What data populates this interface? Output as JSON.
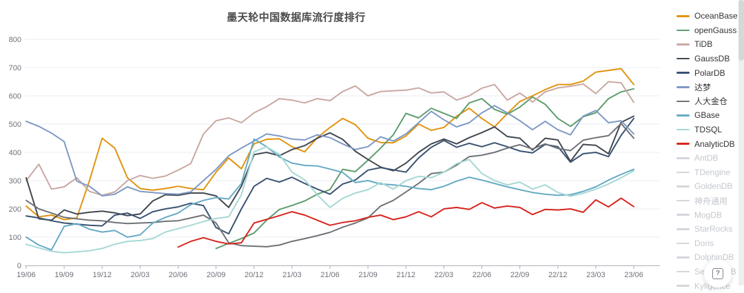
{
  "page": {
    "title": "墨天轮中国数据库流行度排行",
    "help_icon": "?"
  },
  "y_axis": {
    "min": 0,
    "max": 800,
    "interval": 100
  },
  "x_axis": {
    "tick_every": 3
  },
  "chart_data": {
    "type": "line",
    "title": "墨天轮中国数据库流行度排行",
    "xlabel": "",
    "ylabel": "",
    "ylim": [
      0,
      800
    ],
    "grid": true,
    "legend_position": "right",
    "x": [
      "19/06",
      "19/07",
      "19/08",
      "19/09",
      "19/10",
      "19/11",
      "19/12",
      "20/01",
      "20/02",
      "20/03",
      "20/04",
      "20/05",
      "20/06",
      "20/07",
      "20/08",
      "20/09",
      "20/10",
      "20/11",
      "20/12",
      "21/01",
      "21/02",
      "21/03",
      "21/04",
      "21/05",
      "21/06",
      "21/07",
      "21/08",
      "21/09",
      "21/10",
      "21/11",
      "21/12",
      "22/01",
      "22/02",
      "22/03",
      "22/04",
      "22/05",
      "22/06",
      "22/07",
      "22/08",
      "22/09",
      "22/10",
      "22/11",
      "22/12",
      "23/01",
      "23/02",
      "23/03",
      "23/04",
      "23/05",
      "23/06"
    ],
    "series": [
      {
        "name": "OceanBase",
        "color": "#e2930f",
        "active": true,
        "data": [
          210,
          172,
          178,
          162,
          168,
          300,
          450,
          415,
          310,
          272,
          266,
          272,
          280,
          272,
          268,
          330,
          380,
          342,
          430,
          446,
          448,
          420,
          402,
          452,
          488,
          520,
          498,
          450,
          435,
          434,
          458,
          500,
          478,
          488,
          528,
          556,
          520,
          490,
          537,
          580,
          600,
          622,
          640,
          640,
          652,
          684,
          690,
          696,
          640
        ]
      },
      {
        "name": "openGauss",
        "color": "#5f9c6e",
        "active": true,
        "data": [
          null,
          null,
          null,
          null,
          null,
          null,
          null,
          null,
          null,
          null,
          null,
          null,
          null,
          null,
          null,
          60,
          78,
          95,
          115,
          160,
          198,
          212,
          228,
          252,
          268,
          340,
          332,
          372,
          415,
          462,
          538,
          522,
          556,
          538,
          520,
          575,
          590,
          552,
          535,
          560,
          596,
          570,
          520,
          492,
          526,
          540,
          590,
          614,
          625
        ]
      },
      {
        "name": "TiDB",
        "color": "#c9a8a2",
        "active": true,
        "data": [
          300,
          358,
          270,
          278,
          310,
          262,
          248,
          260,
          300,
          318,
          308,
          316,
          337,
          360,
          465,
          512,
          522,
          505,
          540,
          562,
          590,
          585,
          575,
          590,
          583,
          615,
          635,
          600,
          615,
          618,
          620,
          628,
          610,
          614,
          585,
          600,
          627,
          640,
          585,
          610,
          578,
          614,
          628,
          634,
          642,
          608,
          650,
          646,
          577
        ]
      },
      {
        "name": "GaussDB",
        "color": "#414850",
        "active": true,
        "data": [
          310,
          165,
          160,
          196,
          182,
          188,
          192,
          186,
          176,
          182,
          228,
          250,
          248,
          256,
          256,
          246,
          205,
          280,
          392,
          400,
          388,
          410,
          424,
          450,
          469,
          446,
          404,
          375,
          348,
          335,
          362,
          400,
          430,
          447,
          430,
          452,
          470,
          490,
          456,
          450,
          408,
          450,
          444,
          368,
          428,
          425,
          395,
          506,
          528
        ]
      },
      {
        "name": "PolarDB",
        "color": "#3a5272",
        "active": true,
        "data": [
          175,
          168,
          158,
          150,
          146,
          142,
          140,
          178,
          185,
          166,
          190,
          200,
          207,
          220,
          212,
          134,
          112,
          200,
          280,
          308,
          295,
          312,
          290,
          270,
          252,
          288,
          302,
          337,
          346,
          338,
          330,
          380,
          418,
          442,
          418,
          432,
          420,
          434,
          420,
          405,
          398,
          428,
          420,
          365,
          395,
          400,
          385,
          460,
          520
        ]
      },
      {
        "name": "达梦",
        "color": "#7e99c5",
        "active": true,
        "data": [
          510,
          492,
          468,
          438,
          298,
          280,
          246,
          252,
          278,
          262,
          258,
          254,
          252,
          260,
          300,
          340,
          388,
          415,
          440,
          465,
          458,
          447,
          444,
          462,
          452,
          430,
          410,
          420,
          455,
          440,
          465,
          505,
          545,
          515,
          490,
          505,
          540,
          565,
          540,
          512,
          480,
          510,
          480,
          462,
          528,
          548,
          505,
          512,
          465
        ]
      },
      {
        "name": "人大金仓",
        "color": "#6f7276",
        "active": true,
        "data": [
          230,
          200,
          185,
          170,
          165,
          160,
          158,
          152,
          148,
          150,
          152,
          156,
          158,
          168,
          178,
          150,
          80,
          70,
          68,
          66,
          72,
          85,
          95,
          105,
          117,
          135,
          150,
          168,
          210,
          230,
          260,
          290,
          325,
          330,
          355,
          385,
          390,
          400,
          415,
          427,
          412,
          430,
          414,
          406,
          443,
          452,
          459,
          502,
          450
        ]
      },
      {
        "name": "GBase",
        "color": "#66aac4",
        "active": true,
        "data": [
          100,
          72,
          55,
          138,
          148,
          128,
          118,
          124,
          100,
          108,
          150,
          170,
          185,
          215,
          230,
          240,
          235,
          290,
          447,
          420,
          384,
          362,
          354,
          352,
          341,
          329,
          293,
          300,
          288,
          285,
          280,
          272,
          268,
          280,
          298,
          312,
          302,
          290,
          278,
          268,
          258,
          252,
          248,
          250,
          262,
          278,
          302,
          322,
          340
        ]
      },
      {
        "name": "TDSQL",
        "color": "#a6d8d5",
        "active": true,
        "data": [
          75,
          62,
          50,
          45,
          48,
          52,
          60,
          75,
          85,
          88,
          95,
          118,
          130,
          142,
          155,
          166,
          172,
          250,
          402,
          420,
          393,
          330,
          303,
          250,
          205,
          237,
          256,
          268,
          293,
          270,
          300,
          315,
          310,
          330,
          360,
          375,
          325,
          300,
          285,
          295,
          270,
          285,
          258,
          245,
          255,
          270,
          288,
          310,
          335
        ]
      },
      {
        "name": "AnalyticDB",
        "color": "#d7251d",
        "active": true,
        "data": [
          null,
          null,
          null,
          null,
          null,
          null,
          null,
          null,
          null,
          null,
          null,
          null,
          65,
          85,
          98,
          85,
          76,
          80,
          150,
          163,
          176,
          190,
          178,
          160,
          142,
          152,
          158,
          170,
          178,
          162,
          172,
          190,
          172,
          200,
          205,
          198,
          222,
          203,
          210,
          205,
          180,
          198,
          196,
          200,
          188,
          232,
          207,
          238,
          208
        ]
      },
      {
        "name": "AntDB",
        "color": "#d3d6db",
        "active": false,
        "data": null
      },
      {
        "name": "TDengine",
        "color": "#d3d6db",
        "active": false,
        "data": null
      },
      {
        "name": "GoldenDB",
        "color": "#d3d6db",
        "active": false,
        "data": null
      },
      {
        "name": "神舟通用",
        "color": "#d3d6db",
        "active": false,
        "data": null
      },
      {
        "name": "MogDB",
        "color": "#d3d6db",
        "active": false,
        "data": null
      },
      {
        "name": "StarRocks",
        "color": "#d3d6db",
        "active": false,
        "data": null
      },
      {
        "name": "Doris",
        "color": "#d3d6db",
        "active": false,
        "data": null
      },
      {
        "name": "DolphinDB",
        "color": "#d3d6db",
        "active": false,
        "data": null
      },
      {
        "name": "SequoiaDB",
        "color": "#d3d6db",
        "active": false,
        "data": null
      },
      {
        "name": "Kyligence",
        "color": "#d3d6db",
        "active": false,
        "data": null
      }
    ]
  }
}
